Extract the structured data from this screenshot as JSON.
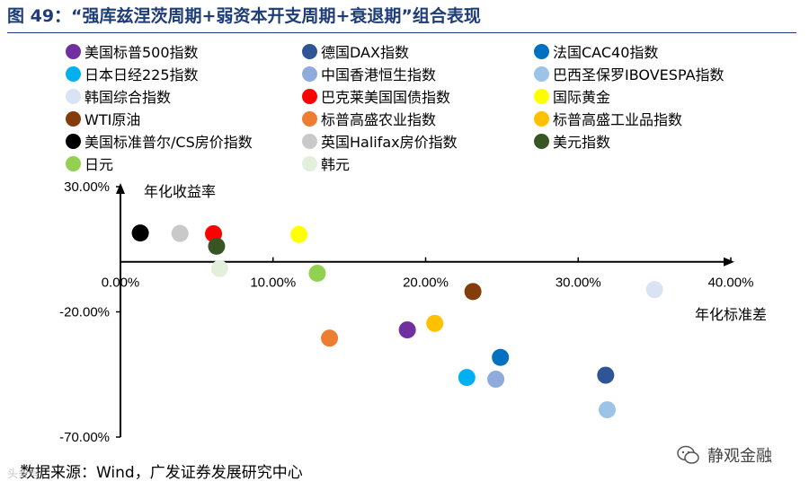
{
  "header": {
    "title": "图 49：“强库兹涅茨周期+弱资本开支周期+衰退期”组合表现"
  },
  "footer": {
    "source": "数据来源：Wind，广发证券发展研究中心",
    "watermark_name": "静观金融",
    "watermark_small": "头条号"
  },
  "chart_data": {
    "type": "scatter",
    "title": "",
    "xlabel": "年化标准差",
    "ylabel": "年化收益率",
    "xlim": [
      0,
      40
    ],
    "ylim": [
      -70,
      30
    ],
    "x_ticks": [
      {
        "v": 0,
        "label": "0.00%"
      },
      {
        "v": 10,
        "label": "10.00%"
      },
      {
        "v": 20,
        "label": "20.00%"
      },
      {
        "v": 30,
        "label": "30.00%"
      },
      {
        "v": 40,
        "label": "40.00%"
      }
    ],
    "y_ticks": [
      {
        "v": 30,
        "label": "30.00%"
      },
      {
        "v": -20,
        "label": "-20.00%"
      },
      {
        "v": -70,
        "label": "-70.00%"
      }
    ],
    "grid": false,
    "legend_position": "top",
    "series": [
      {
        "name": "美国标普500指数",
        "color": "#7030a0",
        "x": 18.8,
        "y": -27.2
      },
      {
        "name": "德国DAX指数",
        "color": "#2f5597",
        "x": 31.8,
        "y": -45.3
      },
      {
        "name": "法国CAC40指数",
        "color": "#0070c0",
        "x": 24.9,
        "y": -38.2
      },
      {
        "name": "日本日经225指数",
        "color": "#00b0f0",
        "x": 22.7,
        "y": -46.2
      },
      {
        "name": "中国香港恒生指数",
        "color": "#8faadc",
        "x": 24.6,
        "y": -46.9
      },
      {
        "name": "巴西圣保罗IBOVESPA指数",
        "color": "#9dc3e6",
        "x": 31.9,
        "y": -59.1
      },
      {
        "name": "韩国综合指数",
        "color": "#dae3f3",
        "x": 35.0,
        "y": -11.1
      },
      {
        "name": "巴克莱美国国债指数",
        "color": "#ff0000",
        "x": 6.1,
        "y": 11.2
      },
      {
        "name": "国际黄金",
        "color": "#ffff00",
        "x": 11.7,
        "y": 10.9
      },
      {
        "name": "WTI原油",
        "color": "#843c0c",
        "x": 23.1,
        "y": -11.9
      },
      {
        "name": "标普高盛农业指数",
        "color": "#ed7d31",
        "x": 13.7,
        "y": -30.5
      },
      {
        "name": "标普高盛工业品指数",
        "color": "#ffc000",
        "x": 20.6,
        "y": -24.6
      },
      {
        "name": "美国标准普尔/CS房价指数",
        "color": "#000000",
        "x": 1.3,
        "y": 11.5
      },
      {
        "name": "英国Halifax房价指数",
        "color": "#c9c9c9",
        "x": 3.9,
        "y": 11.3
      },
      {
        "name": "美元指数",
        "color": "#375623",
        "x": 6.3,
        "y": 6.2
      },
      {
        "name": "日元",
        "color": "#92d050",
        "x": 12.9,
        "y": -4.6
      },
      {
        "name": "韩元",
        "color": "#e2efda",
        "x": 6.5,
        "y": -2.7
      }
    ]
  }
}
